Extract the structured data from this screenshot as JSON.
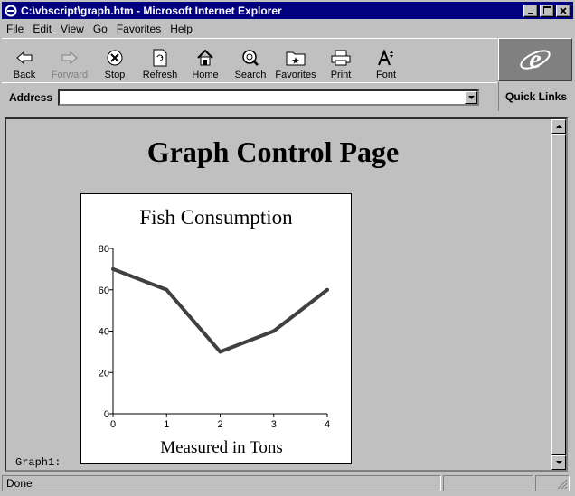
{
  "window": {
    "title": "C:\\vbscript\\graph.htm - Microsoft Internet Explorer"
  },
  "menu": [
    "File",
    "Edit",
    "View",
    "Go",
    "Favorites",
    "Help"
  ],
  "toolbar": {
    "back": "Back",
    "forward": "Forward",
    "stop": "Stop",
    "refresh": "Refresh",
    "home": "Home",
    "search": "Search",
    "favorites": "Favorites",
    "print": "Print",
    "font": "Font"
  },
  "address": {
    "label": "Address",
    "value": ""
  },
  "quick_links": "Quick Links",
  "page": {
    "heading": "Graph Control Page",
    "graph_label": "Graph1:"
  },
  "chart_data": {
    "type": "line",
    "title": "Fish Consumption",
    "xlabel": "Measured in Tons",
    "ylabel": "",
    "x": [
      0,
      1,
      2,
      3,
      4
    ],
    "series": [
      {
        "values": [
          70,
          60,
          30,
          40,
          60
        ]
      }
    ],
    "xlim": [
      0,
      4
    ],
    "ylim": [
      0,
      80
    ],
    "yticks": [
      0,
      20,
      40,
      60,
      80
    ],
    "grid": false,
    "line_color": "#404040"
  },
  "status": {
    "text": "Done"
  }
}
